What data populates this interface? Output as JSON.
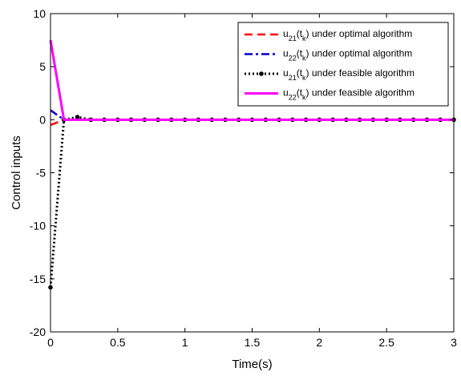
{
  "chart_data": {
    "type": "line",
    "xlabel": "Time(s)",
    "ylabel": "Control inputs",
    "xlim": [
      0,
      3
    ],
    "ylim": [
      -20,
      10
    ],
    "xticks": [
      "0",
      "0.5",
      "1",
      "1.5",
      "2",
      "2.5",
      "3"
    ],
    "yticks": [
      "10",
      "5",
      "0",
      "-5",
      "-10",
      "-15",
      "-20"
    ],
    "grid": false,
    "legend_position": "top-right",
    "series": [
      {
        "name": "u21(tk) under optimal algorithm",
        "legend_base": "u",
        "legend_sub1": "21",
        "legend_mid": "(t",
        "legend_sub2": "k",
        "legend_rest": ") under optimal algorithm",
        "color": "#ff0000",
        "dash": "dashed",
        "marker": "none",
        "x": [
          0,
          0.1,
          0.2,
          0.3,
          3
        ],
        "y": [
          -0.5,
          0,
          0,
          0,
          0
        ]
      },
      {
        "name": "u22(tk) under optimal algorithm",
        "legend_base": "u",
        "legend_sub1": "22",
        "legend_mid": "(t",
        "legend_sub2": "k",
        "legend_rest": ") under optimal algorithm",
        "color": "#0000cc",
        "dash": "dashdot",
        "marker": "none",
        "x": [
          0,
          0.1,
          0.2,
          0.3,
          3
        ],
        "y": [
          0.9,
          0,
          0,
          0,
          0
        ]
      },
      {
        "name": "u21(tk) under feasible algorithm",
        "legend_base": "u",
        "legend_sub1": "21",
        "legend_mid": "(t",
        "legend_sub2": "k",
        "legend_rest": ") under feasible algorithm",
        "color": "#000000",
        "dash": "dotted",
        "marker": "circle",
        "x": [
          0,
          0.1,
          0.2,
          0.3,
          0.4,
          0.5,
          0.6,
          0.7,
          0.8,
          0.9,
          1.0,
          1.1,
          1.2,
          1.3,
          1.4,
          1.5,
          1.6,
          1.7,
          1.8,
          1.9,
          2.0,
          2.1,
          2.2,
          2.3,
          2.4,
          2.5,
          2.6,
          2.7,
          2.8,
          2.9,
          3.0
        ],
        "y": [
          -15.8,
          0,
          0.25,
          0,
          0,
          0,
          0,
          0,
          0,
          0,
          0,
          0,
          0,
          0,
          0,
          0,
          0,
          0,
          0,
          0,
          0,
          0,
          0,
          0,
          0,
          0,
          0,
          0,
          0,
          0,
          0
        ]
      },
      {
        "name": "u22(tk) under feasible algorithm",
        "legend_base": "u",
        "legend_sub1": "22",
        "legend_mid": "(t",
        "legend_sub2": "k",
        "legend_rest": ") under feasible algorithm",
        "color": "#ff00ff",
        "dash": "solid",
        "marker": "none",
        "x": [
          0,
          0.1,
          0.2,
          0.3,
          3
        ],
        "y": [
          7.5,
          0,
          0,
          0,
          0
        ]
      }
    ]
  }
}
